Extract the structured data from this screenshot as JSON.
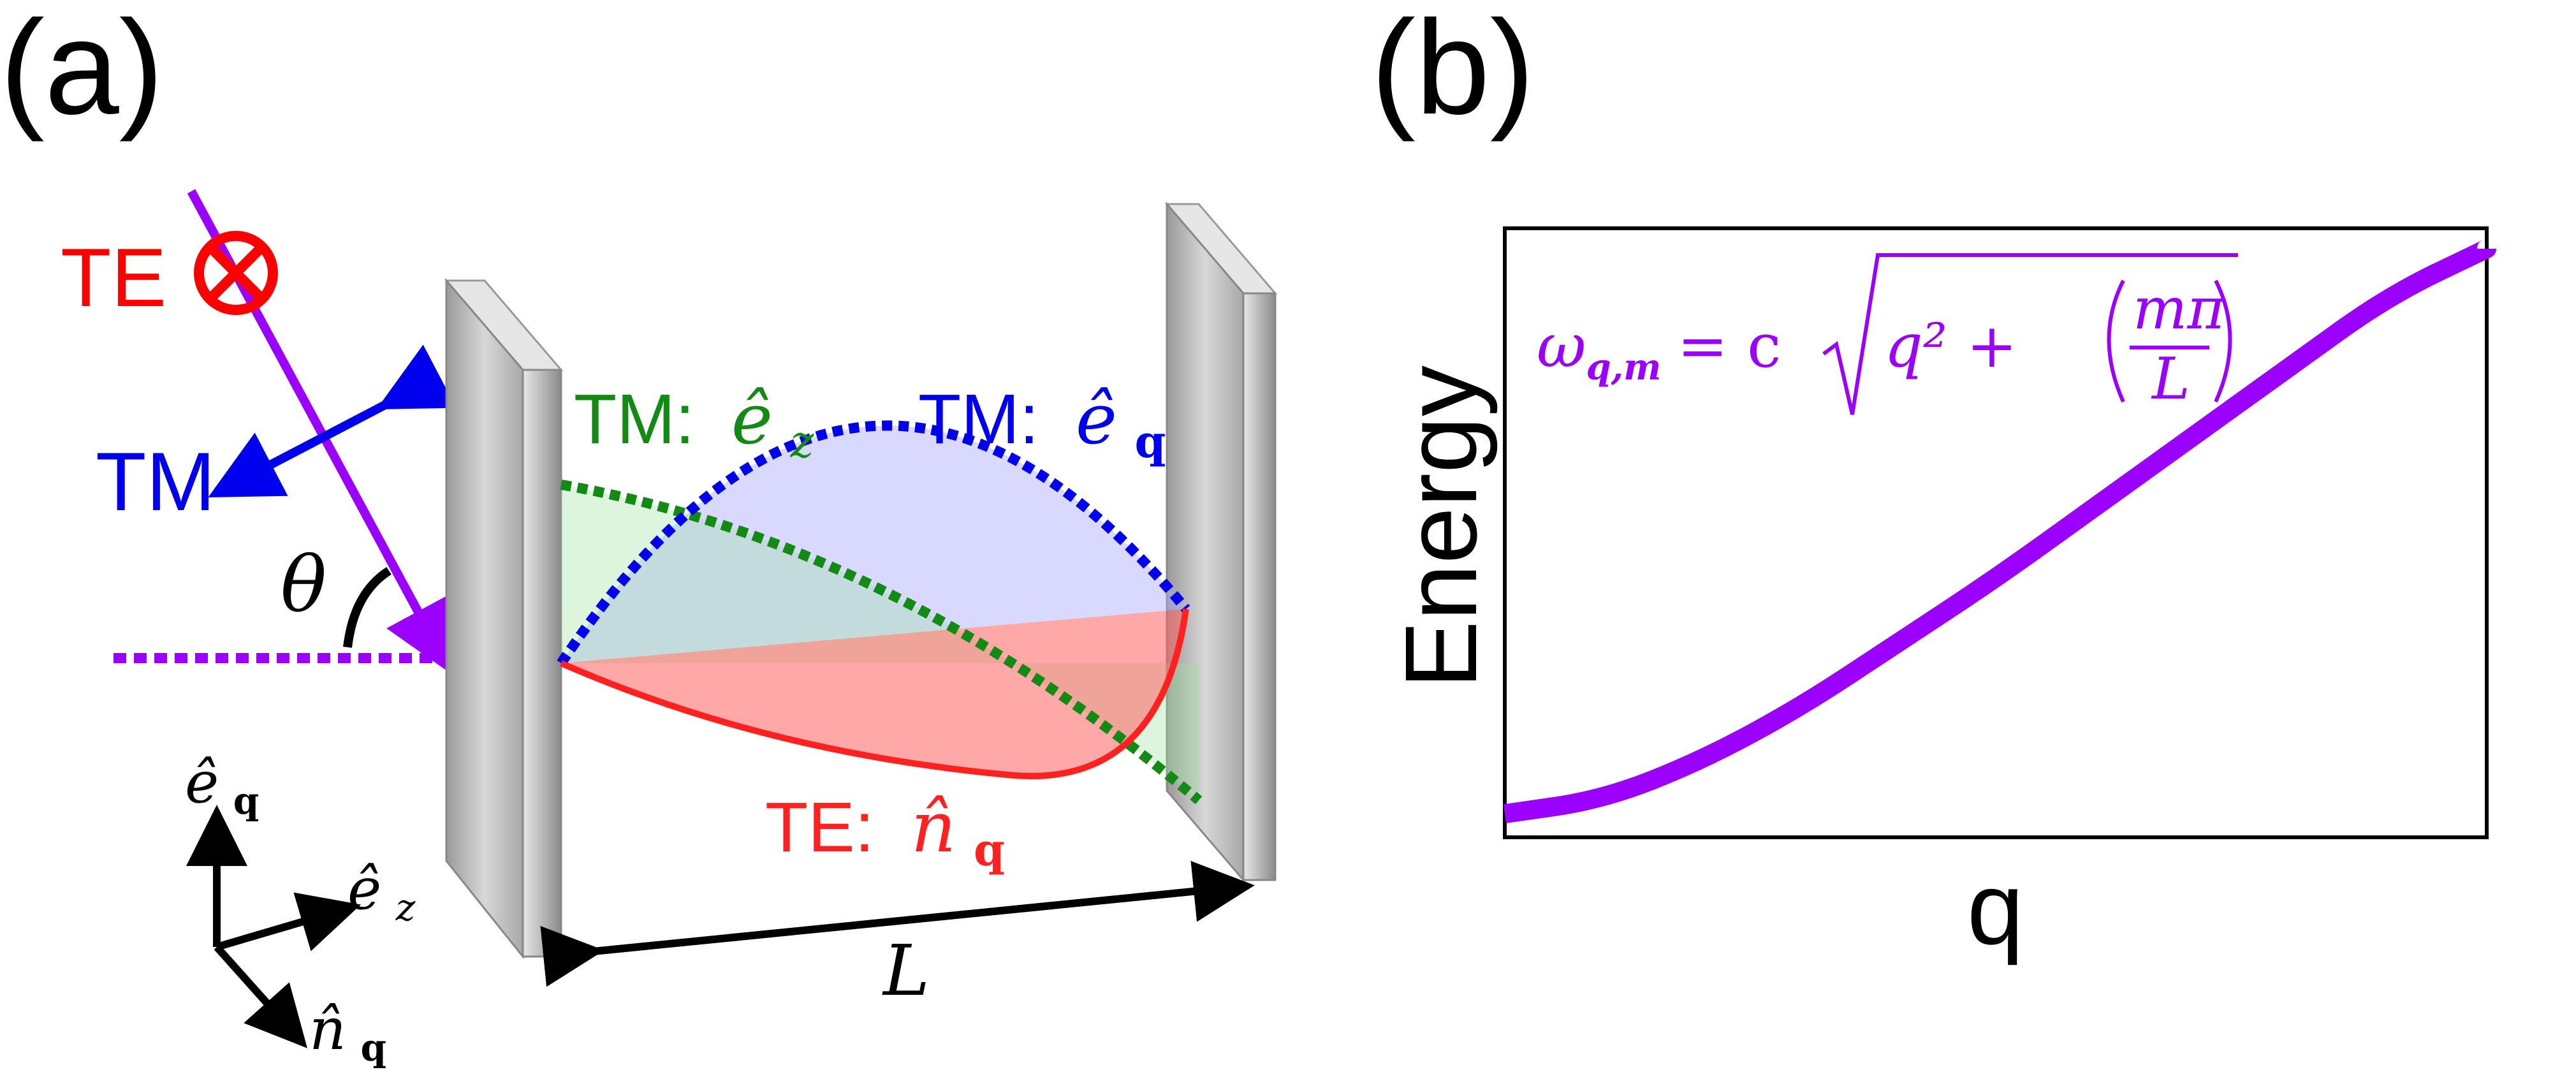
{
  "panel_a": {
    "label": "(a)",
    "te_label": "TE",
    "tm_label": "TM",
    "theta": "θ",
    "tm_ez_prefix": "TM:",
    "tm_eq_prefix": "TM:",
    "te_nq_prefix": "TE:",
    "vec_e": "ê",
    "vec_n": "n̂",
    "sub_q": "q",
    "sub_z": "z",
    "length": "L"
  },
  "panel_b": {
    "label": "(b)",
    "ylabel": "Energy",
    "xlabel": "q",
    "formula_omega": "ω",
    "formula_sub": "q,m",
    "formula_eq": "= c",
    "formula_q2": "q² + ",
    "formula_num": "mπ",
    "formula_den": "L"
  },
  "colors": {
    "te": "#ff0000",
    "tm_blue": "#0000ee",
    "tm_green": "#138a13",
    "beam": "#9b00ff",
    "mirror": "#c8c8c8"
  },
  "chart_data": {
    "type": "line",
    "title": "",
    "xlabel": "q",
    "ylabel": "Energy",
    "x": [
      0,
      0.1,
      0.2,
      0.3,
      0.4,
      0.5,
      0.6,
      0.7,
      0.8,
      0.9,
      1.0
    ],
    "series": [
      {
        "values": [
          0.04,
          0.064,
          0.13,
          0.22,
          0.33,
          0.44,
          0.56,
          0.68,
          0.8,
          0.92,
          1.0
        ]
      }
    ]
  }
}
